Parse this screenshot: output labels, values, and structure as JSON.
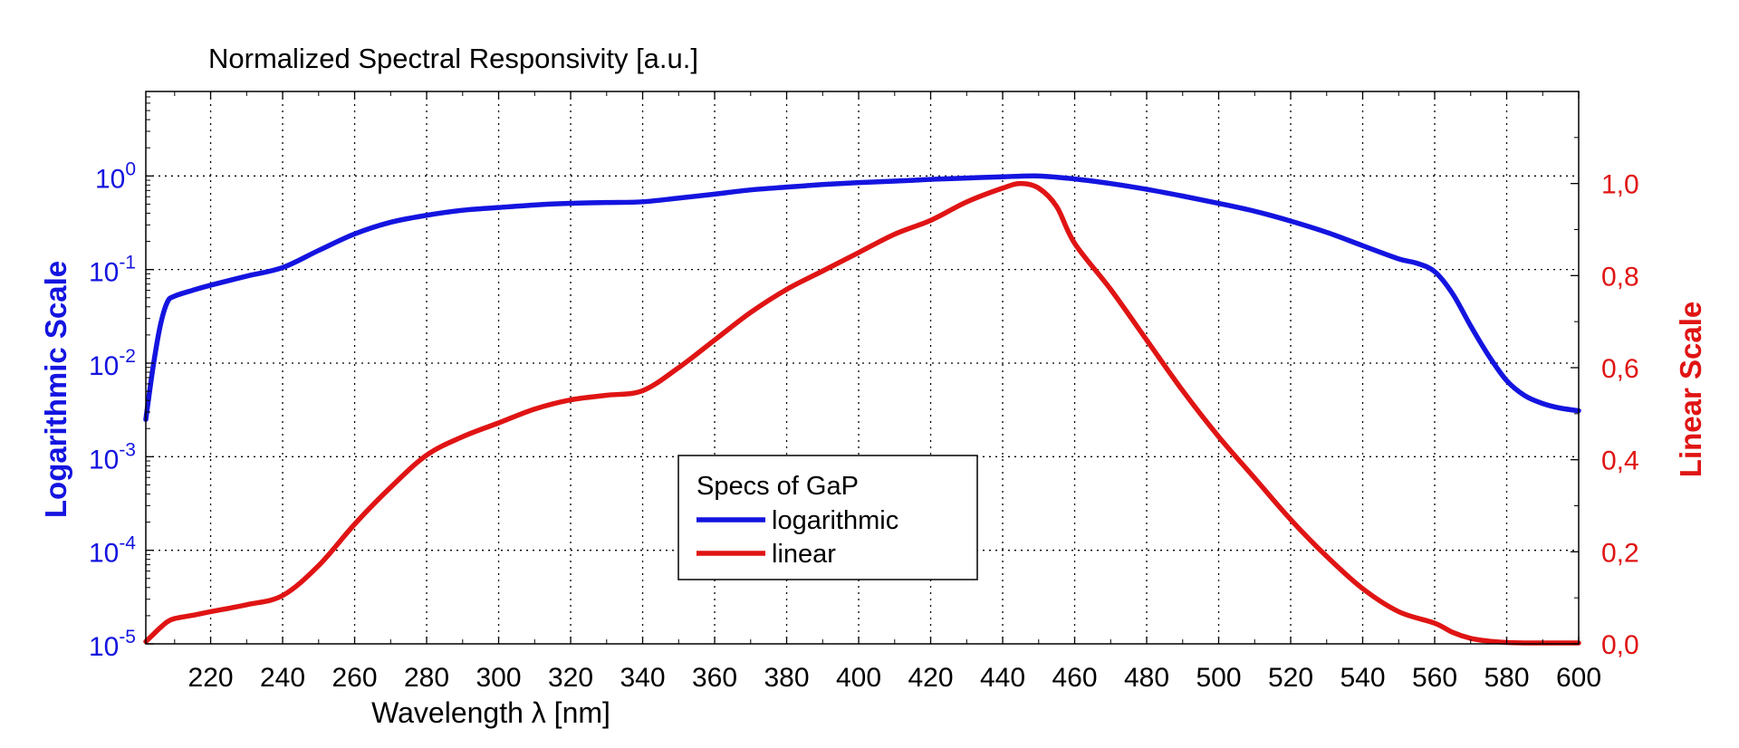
{
  "chart_data": {
    "type": "line",
    "title": "Normalized Spectral Responsivity [a.u.]",
    "xlabel": "Wavelength λ [nm]",
    "ylabel_left": "Logarithmic Scale",
    "ylabel_right": "Linear Scale",
    "xlim": [
      202,
      600
    ],
    "ylim_left_log": [
      1e-05,
      8
    ],
    "ylim_right": [
      0,
      1.2
    ],
    "x_ticks": [
      "220",
      "240",
      "260",
      "280",
      "300",
      "320",
      "340",
      "360",
      "380",
      "400",
      "420",
      "440",
      "460",
      "480",
      "500",
      "520",
      "540",
      "560",
      "580",
      "600"
    ],
    "y_left_ticks": [
      {
        "base": "10",
        "exp": "0"
      },
      {
        "base": "10",
        "exp": "-1"
      },
      {
        "base": "10",
        "exp": "-2"
      },
      {
        "base": "10",
        "exp": "-3"
      },
      {
        "base": "10",
        "exp": "-4"
      },
      {
        "base": "10",
        "exp": "-5"
      }
    ],
    "y_right_ticks": [
      "1,0",
      "0,8",
      "0,6",
      "0,4",
      "0,2",
      "0,0"
    ],
    "grid": true,
    "legend": {
      "title": "Specs of GaP",
      "placement": "lower-center",
      "entries": [
        "logarithmic",
        "linear"
      ]
    },
    "series": [
      {
        "name": "logarithmic",
        "color": "#1414e0",
        "axis": "left-log",
        "x": [
          202,
          204,
          206,
          208,
          210,
          215,
          220,
          230,
          240,
          250,
          260,
          270,
          280,
          290,
          300,
          310,
          320,
          330,
          340,
          350,
          360,
          370,
          380,
          390,
          400,
          410,
          420,
          430,
          440,
          450,
          460,
          470,
          480,
          490,
          500,
          510,
          520,
          530,
          540,
          550,
          555,
          560,
          565,
          570,
          575,
          580,
          585,
          590,
          595,
          600
        ],
        "y": [
          0.0025,
          0.009,
          0.025,
          0.045,
          0.052,
          0.06,
          0.068,
          0.085,
          0.105,
          0.16,
          0.24,
          0.32,
          0.38,
          0.43,
          0.46,
          0.49,
          0.51,
          0.52,
          0.53,
          0.58,
          0.64,
          0.71,
          0.76,
          0.81,
          0.85,
          0.88,
          0.92,
          0.95,
          0.98,
          1.0,
          0.93,
          0.83,
          0.72,
          0.61,
          0.51,
          0.42,
          0.33,
          0.25,
          0.18,
          0.13,
          0.117,
          0.095,
          0.055,
          0.025,
          0.012,
          0.0065,
          0.0045,
          0.0037,
          0.0033,
          0.0031
        ]
      },
      {
        "name": "linear",
        "color": "#e01414",
        "axis": "right-linear",
        "x": [
          202,
          204,
          206,
          208,
          210,
          215,
          220,
          230,
          240,
          250,
          260,
          270,
          280,
          290,
          300,
          310,
          320,
          330,
          340,
          350,
          360,
          370,
          380,
          390,
          400,
          410,
          420,
          430,
          440,
          445,
          450,
          455,
          460,
          470,
          480,
          490,
          500,
          510,
          520,
          530,
          540,
          550,
          560,
          565,
          570,
          575,
          580,
          585,
          590,
          600
        ],
        "y": [
          0.005,
          0.02,
          0.035,
          0.048,
          0.055,
          0.062,
          0.07,
          0.085,
          0.105,
          0.17,
          0.26,
          0.34,
          0.41,
          0.45,
          0.48,
          0.51,
          0.53,
          0.54,
          0.55,
          0.6,
          0.66,
          0.72,
          0.77,
          0.81,
          0.85,
          0.89,
          0.92,
          0.96,
          0.99,
          1.0,
          0.99,
          0.95,
          0.87,
          0.77,
          0.66,
          0.55,
          0.45,
          0.36,
          0.27,
          0.19,
          0.12,
          0.07,
          0.045,
          0.025,
          0.012,
          0.006,
          0.003,
          0.002,
          0.002,
          0.002
        ]
      }
    ]
  }
}
